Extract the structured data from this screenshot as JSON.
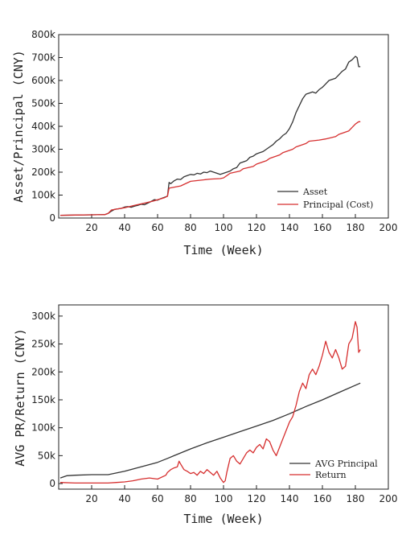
{
  "chart_data": [
    {
      "type": "line",
      "title": "",
      "xlabel": "Time (Week)",
      "ylabel": "Asset/Principal (CNY)",
      "xlim": [
        0,
        200
      ],
      "ylim": [
        0,
        800000
      ],
      "xticks": [
        20,
        40,
        60,
        80,
        100,
        120,
        140,
        160,
        180,
        200
      ],
      "xtick_labels": [
        "20",
        "40",
        "60",
        "80",
        "100",
        "120",
        "140",
        "160",
        "180",
        "200"
      ],
      "yticks": [
        0,
        100000,
        200000,
        300000,
        400000,
        500000,
        600000,
        700000,
        800000
      ],
      "ytick_labels": [
        "0",
        "100k",
        "200k",
        "300k",
        "400k",
        "500k",
        "600k",
        "700k",
        "800k"
      ],
      "grid": false,
      "legend_position": "bottom-right",
      "series": [
        {
          "name": "Asset",
          "color": "#333333",
          "x": [
            1,
            10,
            20,
            28,
            30,
            32,
            34,
            36,
            38,
            40,
            42,
            44,
            46,
            48,
            50,
            52,
            54,
            56,
            58,
            60,
            62,
            64,
            66,
            67,
            68,
            70,
            72,
            74,
            76,
            78,
            80,
            82,
            84,
            86,
            88,
            90,
            92,
            94,
            96,
            98,
            100,
            102,
            104,
            106,
            108,
            110,
            112,
            114,
            116,
            118,
            120,
            122,
            124,
            126,
            128,
            130,
            132,
            134,
            136,
            138,
            140,
            142,
            144,
            146,
            148,
            150,
            152,
            154,
            156,
            158,
            160,
            162,
            164,
            166,
            168,
            170,
            172,
            174,
            176,
            178,
            180,
            181,
            182,
            183
          ],
          "y": [
            12000,
            13000,
            14000,
            15000,
            20000,
            30000,
            38000,
            40000,
            42000,
            48000,
            50000,
            47000,
            52000,
            55000,
            60000,
            58000,
            65000,
            72000,
            80000,
            78000,
            85000,
            90000,
            95000,
            155000,
            150000,
            162000,
            170000,
            168000,
            180000,
            185000,
            190000,
            188000,
            195000,
            192000,
            200000,
            198000,
            205000,
            200000,
            195000,
            190000,
            195000,
            200000,
            205000,
            215000,
            220000,
            240000,
            245000,
            250000,
            265000,
            270000,
            280000,
            285000,
            290000,
            300000,
            310000,
            320000,
            335000,
            345000,
            360000,
            370000,
            390000,
            420000,
            460000,
            490000,
            520000,
            540000,
            545000,
            550000,
            545000,
            560000,
            570000,
            585000,
            600000,
            605000,
            610000,
            625000,
            640000,
            650000,
            680000,
            690000,
            705000,
            700000,
            660000,
            660000
          ]
        },
        {
          "name": "Principal (Cost)",
          "color": "#d62f2f",
          "x": [
            1,
            10,
            20,
            28,
            30,
            32,
            40,
            46,
            52,
            58,
            60,
            64,
            66,
            67,
            74,
            80,
            86,
            92,
            98,
            100,
            102,
            104,
            110,
            112,
            118,
            120,
            126,
            128,
            134,
            136,
            142,
            144,
            150,
            152,
            158,
            162,
            168,
            170,
            176,
            178,
            180,
            182,
            183
          ],
          "y": [
            12000,
            13000,
            14000,
            15000,
            20000,
            35000,
            45000,
            55000,
            65000,
            75000,
            80000,
            88000,
            95000,
            130000,
            140000,
            160000,
            165000,
            170000,
            172000,
            175000,
            185000,
            195000,
            205000,
            215000,
            225000,
            235000,
            250000,
            260000,
            275000,
            285000,
            300000,
            310000,
            325000,
            335000,
            340000,
            345000,
            355000,
            365000,
            380000,
            395000,
            410000,
            420000,
            420000
          ]
        }
      ]
    },
    {
      "type": "line",
      "title": "",
      "xlabel": "Time (Week)",
      "ylabel": "AVG PR/Return (CNY)",
      "xlim": [
        0,
        200
      ],
      "ylim": [
        -10000,
        320000
      ],
      "xticks": [
        20,
        40,
        60,
        80,
        100,
        120,
        140,
        160,
        180,
        200
      ],
      "xtick_labels": [
        "20",
        "40",
        "60",
        "80",
        "100",
        "120",
        "140",
        "160",
        "180",
        "200"
      ],
      "yticks": [
        0,
        50000,
        100000,
        150000,
        200000,
        250000,
        300000
      ],
      "ytick_labels": [
        "0",
        "50k",
        "100k",
        "150k",
        "200k",
        "250k",
        "300k"
      ],
      "grid": false,
      "legend_position": "bottom-right",
      "series": [
        {
          "name": "AVG Principal",
          "color": "#333333",
          "x": [
            1,
            5,
            10,
            20,
            30,
            40,
            50,
            60,
            66,
            70,
            80,
            90,
            100,
            110,
            120,
            130,
            140,
            150,
            160,
            170,
            183
          ],
          "y": [
            10000,
            14000,
            15000,
            16000,
            16000,
            22000,
            30000,
            38000,
            45000,
            50000,
            62000,
            73000,
            83000,
            93000,
            103000,
            113000,
            125000,
            138000,
            150000,
            163000,
            180000
          ]
        },
        {
          "name": "Return",
          "color": "#d62f2f",
          "x": [
            1,
            10,
            20,
            30,
            35,
            40,
            45,
            50,
            55,
            60,
            65,
            66,
            68,
            70,
            72,
            73,
            74,
            76,
            78,
            80,
            82,
            84,
            86,
            88,
            90,
            92,
            94,
            96,
            98,
            100,
            101,
            102,
            104,
            106,
            108,
            110,
            112,
            114,
            116,
            118,
            120,
            122,
            124,
            126,
            128,
            130,
            132,
            134,
            136,
            138,
            140,
            142,
            144,
            146,
            148,
            150,
            152,
            154,
            156,
            158,
            160,
            162,
            164,
            166,
            168,
            170,
            172,
            174,
            176,
            178,
            180,
            181,
            182,
            183
          ],
          "y": [
            2000,
            1000,
            1000,
            1000,
            2000,
            3000,
            5000,
            8000,
            10000,
            8000,
            15000,
            20000,
            25000,
            28000,
            30000,
            40000,
            35000,
            25000,
            22000,
            18000,
            20000,
            15000,
            22000,
            18000,
            25000,
            20000,
            15000,
            22000,
            10000,
            2000,
            5000,
            20000,
            45000,
            50000,
            40000,
            35000,
            45000,
            55000,
            60000,
            55000,
            65000,
            70000,
            62000,
            80000,
            75000,
            60000,
            50000,
            65000,
            80000,
            95000,
            110000,
            120000,
            140000,
            165000,
            180000,
            170000,
            195000,
            205000,
            195000,
            210000,
            230000,
            255000,
            235000,
            225000,
            240000,
            225000,
            205000,
            210000,
            250000,
            260000,
            290000,
            280000,
            235000,
            240000
          ]
        }
      ]
    }
  ]
}
